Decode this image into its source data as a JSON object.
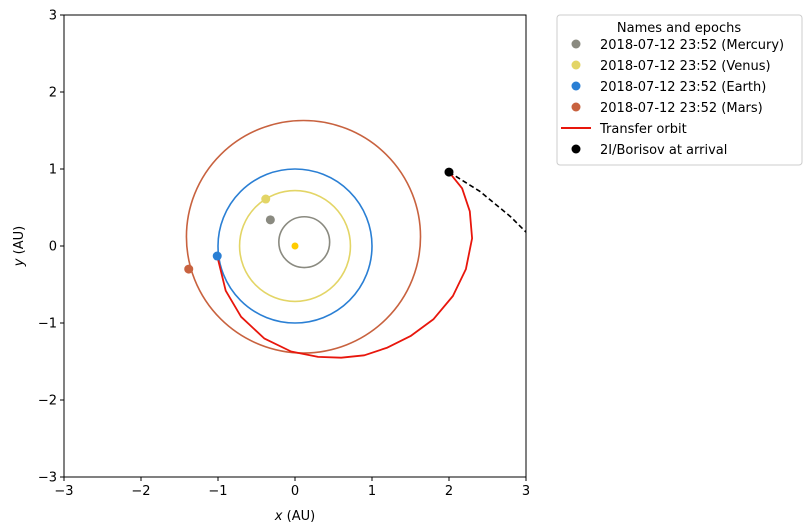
{
  "chart_data": {
    "type": "line",
    "xlabel_var": "x",
    "xlabel_unit": "(AU)",
    "ylabel_var": "y",
    "ylabel_unit": "(AU)",
    "xlim": [
      -3,
      3
    ],
    "ylim": [
      -3,
      3
    ],
    "xticks": [
      -3,
      -2,
      -1,
      0,
      1,
      2,
      3
    ],
    "yticks": [
      -3,
      -2,
      -1,
      0,
      1,
      2,
      3
    ],
    "xtick_labels": [
      "−3",
      "−2",
      "−1",
      "0",
      "1",
      "2",
      "3"
    ],
    "ytick_labels": [
      "−3",
      "−2",
      "−1",
      "0",
      "1",
      "2",
      "3"
    ],
    "grid": false,
    "sun": {
      "x": 0.0,
      "y": 0.0,
      "color": "#ffcc00"
    },
    "orbits": [
      {
        "name": "Mercury",
        "color": "#8a8a80",
        "cx": 0.12,
        "cy": 0.05,
        "rx": 0.33,
        "ry": 0.33,
        "position": {
          "x": -0.32,
          "y": 0.34
        }
      },
      {
        "name": "Venus",
        "color": "#e3d566",
        "cx": 0.0,
        "cy": 0.0,
        "rx": 0.72,
        "ry": 0.72,
        "position": {
          "x": -0.38,
          "y": 0.61
        }
      },
      {
        "name": "Earth",
        "color": "#2a7fd4",
        "cx": 0.0,
        "cy": 0.0,
        "rx": 1.0,
        "ry": 1.0,
        "position": {
          "x": -1.01,
          "y": -0.13
        }
      },
      {
        "name": "Mars",
        "color": "#c8623f",
        "cx": 0.11,
        "cy": 0.12,
        "rx": 1.52,
        "ry": 1.51,
        "position": {
          "x": -1.38,
          "y": -0.3
        }
      }
    ],
    "transfer_orbit": {
      "name": "Transfer orbit",
      "color": "#e8160c",
      "points": [
        [
          -1.01,
          -0.13
        ],
        [
          -0.9,
          -0.58
        ],
        [
          -0.7,
          -0.92
        ],
        [
          -0.4,
          -1.2
        ],
        [
          -0.05,
          -1.37
        ],
        [
          0.3,
          -1.44
        ],
        [
          0.6,
          -1.45
        ],
        [
          0.9,
          -1.42
        ],
        [
          1.2,
          -1.32
        ],
        [
          1.5,
          -1.17
        ],
        [
          1.8,
          -0.95
        ],
        [
          2.05,
          -0.65
        ],
        [
          2.22,
          -0.3
        ],
        [
          2.3,
          0.1
        ],
        [
          2.27,
          0.45
        ],
        [
          2.17,
          0.75
        ],
        [
          2.0,
          0.96
        ]
      ]
    },
    "interstellar_path": {
      "name": "2I/Borisov path",
      "color": "#000000",
      "points": [
        [
          2.0,
          0.96
        ],
        [
          2.4,
          0.71
        ],
        [
          2.8,
          0.38
        ],
        [
          3.0,
          0.18
        ]
      ]
    },
    "arrival_point": {
      "name": "2I/Borisov at arrival",
      "x": 2.0,
      "y": 0.96,
      "color": "#000000"
    },
    "legend": {
      "title": "Names and epochs",
      "placement": "outside-upper-right",
      "entries": [
        {
          "label": "2018-07-12 23:52 (Mercury)",
          "marker": "dot",
          "color": "#8a8a80"
        },
        {
          "label": "2018-07-12 23:52 (Venus)",
          "marker": "dot",
          "color": "#e3d566"
        },
        {
          "label": "2018-07-12 23:52 (Earth)",
          "marker": "dot",
          "color": "#2a7fd4"
        },
        {
          "label": "2018-07-12 23:52 (Mars)",
          "marker": "dot",
          "color": "#c8623f"
        },
        {
          "label": "Transfer orbit",
          "marker": "line",
          "color": "#e8160c"
        },
        {
          "label": "2I/Borisov at arrival",
          "marker": "dot",
          "color": "#000000"
        }
      ]
    }
  }
}
